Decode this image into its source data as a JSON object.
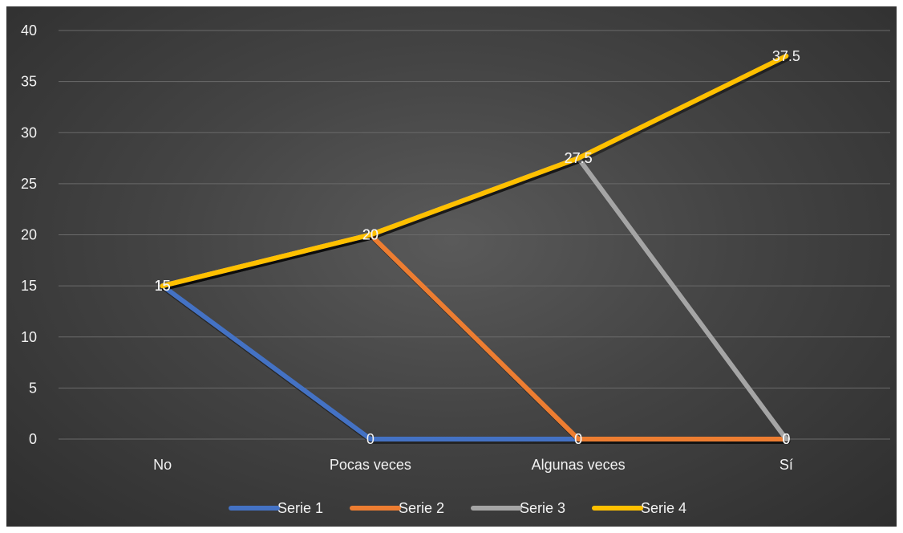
{
  "chart_data": {
    "type": "line",
    "title": "",
    "xlabel": "",
    "ylabel": "",
    "categories": [
      "No",
      "Pocas veces",
      "Algunas veces",
      "Sí"
    ],
    "ylim": [
      0,
      40
    ],
    "yticks": [
      0,
      5,
      10,
      15,
      20,
      25,
      30,
      35,
      40
    ],
    "grid": true,
    "legend_position": "bottom",
    "data_labels": true,
    "series": [
      {
        "name": "Serie 1",
        "color": "#4472C4",
        "values": [
          15,
          0,
          0,
          0
        ]
      },
      {
        "name": "Serie 2",
        "color": "#ED7D31",
        "values": [
          15,
          20,
          0,
          0
        ]
      },
      {
        "name": "Serie 3",
        "color": "#A5A5A5",
        "values": [
          15,
          20,
          27.5,
          0
        ]
      },
      {
        "name": "Serie 4",
        "color": "#FFC000",
        "values": [
          15,
          20,
          27.5,
          37.5
        ]
      }
    ]
  }
}
